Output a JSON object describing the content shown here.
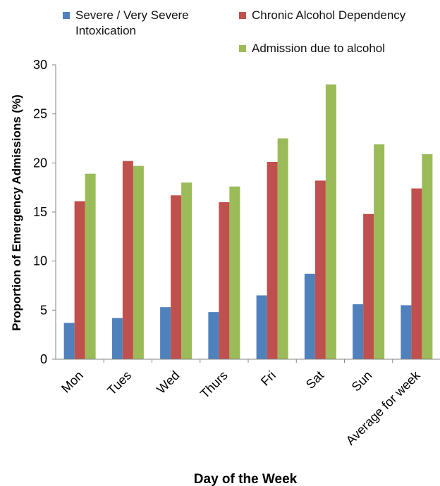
{
  "chart_data": {
    "type": "bar",
    "categories": [
      "Mon",
      "Tues",
      "Wed",
      "Thurs",
      "Fri",
      "Sat",
      "Sun",
      "Average for week"
    ],
    "series": [
      {
        "name": "Severe / Very Severe Intoxication",
        "color": "#4f81bd",
        "values": [
          3.7,
          4.2,
          5.3,
          4.8,
          6.5,
          8.7,
          5.6,
          5.5
        ]
      },
      {
        "name": "Chronic Alcohol Dependency",
        "color": "#c0504d",
        "values": [
          16.1,
          20.2,
          16.7,
          16.0,
          20.1,
          18.2,
          14.8,
          17.4
        ]
      },
      {
        "name": "Admission due to alcohol",
        "color": "#9bbb59",
        "values": [
          18.9,
          19.7,
          18.0,
          17.6,
          22.5,
          28.0,
          21.9,
          20.9
        ]
      }
    ],
    "xlabel": "Day of the Week",
    "ylabel": "Proportion of Emergency Admissions (%)",
    "ylim": [
      0,
      30
    ],
    "yticks": [
      0,
      5,
      10,
      15,
      20,
      25,
      30
    ],
    "grid": false,
    "legend_position": "top"
  }
}
